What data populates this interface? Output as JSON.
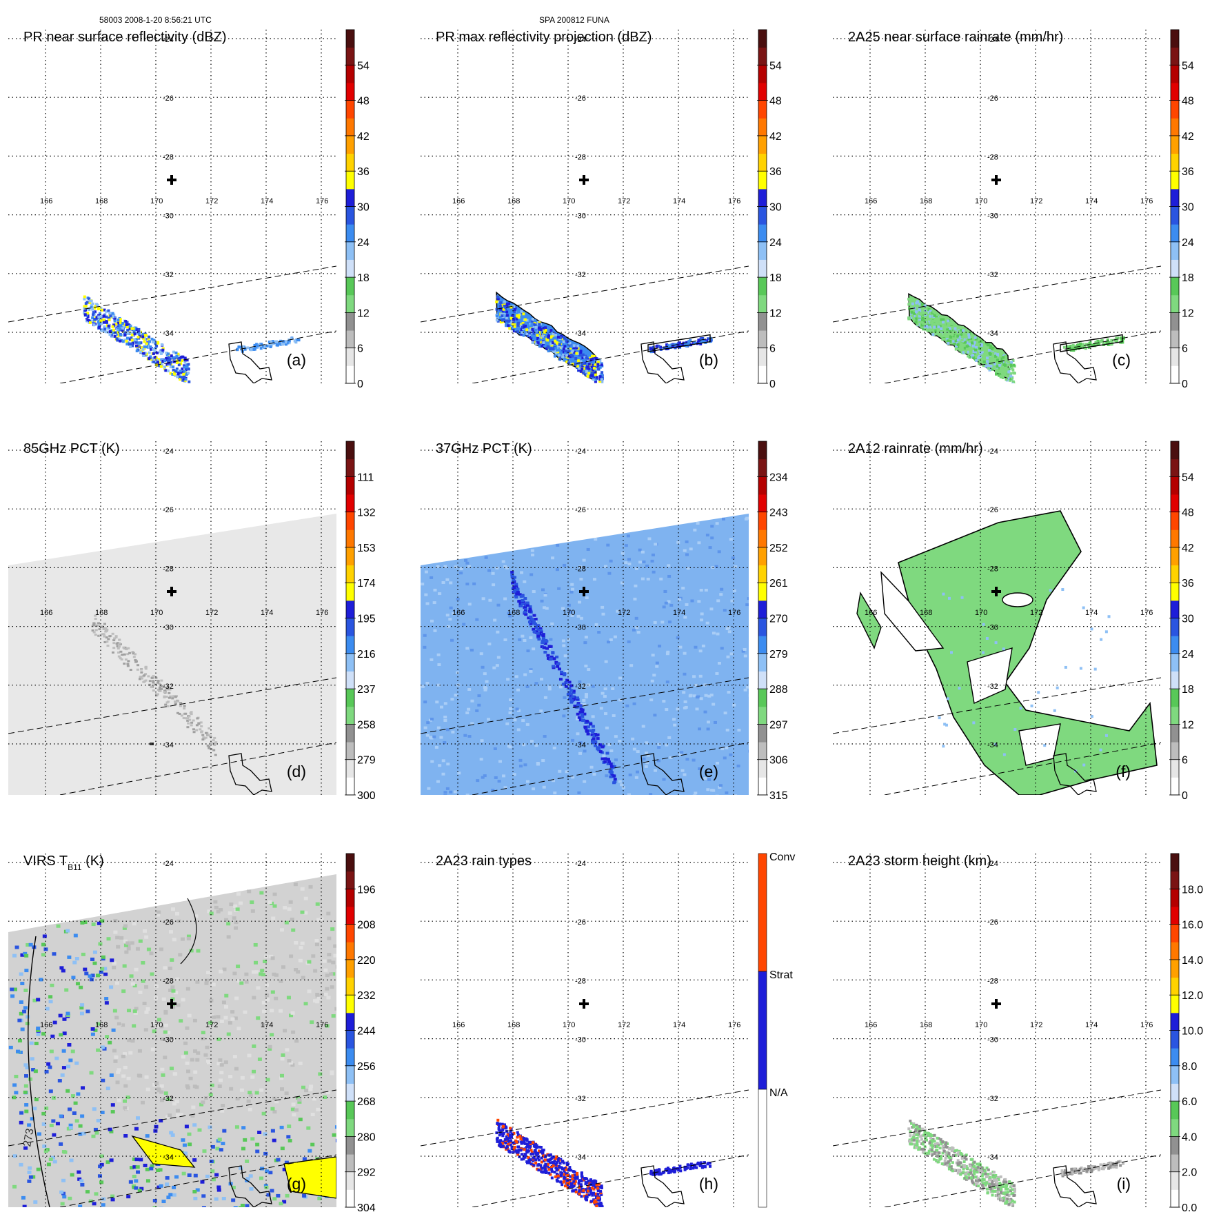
{
  "header": {
    "left": "58003 2008-1-20 8:56:21 UTC",
    "center": "SPA 200812 FUNA"
  },
  "grid": {
    "lon_labels": [
      "166",
      "168",
      "170",
      "172",
      "174",
      "176"
    ],
    "lat_labels": [
      "-24",
      "-26",
      "-28",
      "-30",
      "-32",
      "-34"
    ]
  },
  "colors": {
    "scale": [
      "#ffffff",
      "#e6e6e6",
      "#bdbdbd",
      "#919191",
      "#7fd97f",
      "#58c858",
      "#cfe0f8",
      "#8ec0f5",
      "#3c8cf0",
      "#2a55e0",
      "#1e1ed8",
      "#ffff00",
      "#ffd200",
      "#ffa000",
      "#ff7800",
      "#ff4600",
      "#e10000",
      "#b40000",
      "#7a1414",
      "#4a0f0f"
    ],
    "raintype": [
      "#ffffff",
      "#1e1ed8",
      "#ff4600"
    ]
  },
  "panels": [
    {
      "letter": "(a)",
      "title": "PR near surface reflectivity (dBZ)",
      "kind": "pr_a",
      "colorbar": {
        "type": "scale",
        "ticks": [
          "0",
          "6",
          "12",
          "18",
          "24",
          "30",
          "36",
          "42",
          "48",
          "54"
        ]
      }
    },
    {
      "letter": "(b)",
      "title": "PR max reflectivity projection (dBZ)",
      "kind": "pr_b",
      "colorbar": {
        "type": "scale",
        "ticks": [
          "0",
          "6",
          "12",
          "18",
          "24",
          "30",
          "36",
          "42",
          "48",
          "54"
        ]
      }
    },
    {
      "letter": "(c)",
      "title": "2A25 near surface rainrate (mm/hr)",
      "kind": "rain_c",
      "colorbar": {
        "type": "scale",
        "ticks": [
          "0",
          "6",
          "12",
          "18",
          "24",
          "30",
          "36",
          "42",
          "48",
          "54"
        ]
      }
    },
    {
      "letter": "(d)",
      "title": "85GHz PCT (K)",
      "kind": "pct85",
      "colorbar": {
        "type": "scale_rev",
        "ticks": [
          "300",
          "279",
          "258",
          "237",
          "216",
          "195",
          "174",
          "153",
          "132",
          "111"
        ]
      }
    },
    {
      "letter": "(e)",
      "title": "37GHz PCT (K)",
      "kind": "pct37",
      "colorbar": {
        "type": "scale_rev",
        "ticks": [
          "315",
          "306",
          "297",
          "288",
          "279",
          "270",
          "261",
          "252",
          "243",
          "234"
        ]
      }
    },
    {
      "letter": "(f)",
      "title": "2A12 rainrate (mm/hr)",
      "kind": "rain_f",
      "colorbar": {
        "type": "scale",
        "ticks": [
          "0",
          "6",
          "12",
          "18",
          "24",
          "30",
          "36",
          "42",
          "48",
          "54"
        ]
      }
    },
    {
      "letter": "(g)",
      "title": "VIRS T",
      "title_sub": "B11",
      "title_after": " (K)",
      "kind": "virs",
      "contour_label": "273",
      "colorbar": {
        "type": "scale_rev",
        "ticks": [
          "304",
          "292",
          "280",
          "268",
          "256",
          "244",
          "232",
          "220",
          "208",
          "196"
        ]
      }
    },
    {
      "letter": "(h)",
      "title": "2A23 rain types",
      "kind": "types",
      "colorbar": {
        "type": "raintype",
        "ticks": [
          "N/A",
          "Strat",
          "Conv"
        ]
      }
    },
    {
      "letter": "(i)",
      "title": "2A23 storm height (km)",
      "kind": "height",
      "colorbar": {
        "type": "scale",
        "ticks": [
          "0.0",
          "2.0",
          "4.0",
          "6.0",
          "8.0",
          "10.0",
          "12.0",
          "14.0",
          "16.0",
          "18.0"
        ]
      }
    }
  ]
}
